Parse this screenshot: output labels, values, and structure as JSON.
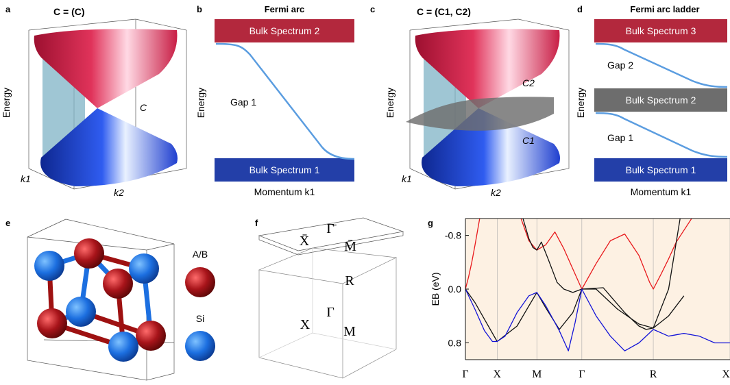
{
  "panels": {
    "a": {
      "letter": "a",
      "header": "C = (C)",
      "ylabel": "Energy",
      "chern_label": "C",
      "k1_label": "k1",
      "k2_label": "k2",
      "colors": {
        "upper_cone": "#c81e45",
        "lower_cone": "#1f3fcf",
        "plane": "#7fb3c6"
      }
    },
    "b": {
      "letter": "b",
      "title": "Fermi arc",
      "ylabel": "Energy",
      "xlabel": "Momentum k1",
      "bulk_top": "Bulk Spectrum 2",
      "bulk_bottom": "Bulk Spectrum 1",
      "gap": "Gap 1",
      "colors": {
        "top": "#b3283d",
        "bottom": "#233fa8",
        "arc": "#5b9de0"
      }
    },
    "c": {
      "letter": "c",
      "header": "C = (C1, C2)",
      "ylabel": "Energy",
      "c2_label": "C2",
      "c1_label": "C1",
      "k1_label": "k1",
      "k2_label": "k2",
      "colors": {
        "middle_sheet": "#6e6e6e"
      }
    },
    "d": {
      "letter": "d",
      "title": "Fermi arc ladder",
      "ylabel": "Energy",
      "xlabel": "Momentum k1",
      "bulk_top": "Bulk Spectrum 3",
      "bulk_mid": "Bulk Spectrum 2",
      "bulk_bottom": "Bulk Spectrum 1",
      "gap_upper": "Gap 2",
      "gap_lower": "Gap 1",
      "colors": {
        "top": "#b3283d",
        "mid": "#6d6d6d",
        "bottom": "#233fa8"
      }
    },
    "e": {
      "letter": "e",
      "legend_ab": "A/B",
      "legend_si": "Si",
      "colors": {
        "ab": "#9e1111",
        "si": "#1c6fe0"
      }
    },
    "f": {
      "letter": "f",
      "surface_points": [
        "X̄",
        "Γ̄",
        "M̄"
      ],
      "bulk_points": [
        "R",
        "Γ",
        "X",
        "M"
      ]
    },
    "g": {
      "letter": "g",
      "ylabel": "EB (eV)",
      "yticks": [
        "-0.8",
        "0.0",
        "0.8"
      ],
      "xticks": [
        "Γ",
        "X",
        "M",
        "Γ",
        "R",
        "X"
      ],
      "colors": {
        "bg": "#fdf1e3",
        "red": "#e8191c",
        "black": "#111111",
        "blue": "#1414d8"
      }
    }
  },
  "chart_data": {
    "type": "line",
    "xlabel": "",
    "ylabel": "EB (eV)",
    "x_ticks": [
      "Γ",
      "X",
      "M",
      "Γ",
      "R",
      "X"
    ],
    "x_tick_positions": [
      0,
      1,
      2,
      3,
      4,
      5
    ],
    "ylim": [
      -1.05,
      1.05
    ],
    "y_inverted": true,
    "grid": true,
    "series": [
      {
        "color": "red",
        "x": [
          0,
          0.1,
          0.2,
          0.3,
          0.45,
          1.0,
          1.6,
          1.8,
          2.0,
          2.2,
          2.4,
          2.6,
          2.8,
          3.0,
          3.2,
          3.4,
          3.6,
          3.8,
          3.95,
          4.0,
          4.1,
          4.2,
          4.3,
          4.5
        ],
        "y": [
          0.0,
          -0.18,
          -0.4,
          -0.65,
          -1.05,
          -1.5,
          -1.05,
          -0.72,
          -0.58,
          -0.66,
          -0.85,
          -0.6,
          -0.3,
          0.0,
          -0.38,
          -0.72,
          -0.82,
          -0.5,
          -0.1,
          0.0,
          -0.22,
          -0.45,
          -0.7,
          -1.05
        ]
      },
      {
        "color": "black",
        "x": [
          0,
          0.3,
          0.6,
          1.0,
          1.5,
          1.8,
          2.0,
          2.2,
          2.5,
          2.8,
          3.0,
          3.2,
          3.5,
          3.8,
          4.0,
          4.2,
          4.35
        ],
        "y": [
          0.0,
          0.2,
          0.45,
          0.78,
          0.55,
          0.25,
          0.05,
          0.28,
          0.6,
          0.35,
          0.0,
          0.0,
          0.3,
          0.52,
          0.58,
          0.0,
          -1.05
        ]
      },
      {
        "color": "black",
        "x": [
          1.65,
          1.8,
          1.9,
          2.0,
          2.1,
          2.25,
          2.45,
          2.6,
          2.8,
          3.0
        ],
        "y": [
          -1.05,
          -0.75,
          -0.62,
          -0.58,
          -0.7,
          -0.45,
          -0.1,
          0.0,
          0.05,
          0.0
        ]
      },
      {
        "color": "black",
        "x": [
          3.0,
          3.3,
          3.6,
          3.8,
          3.9,
          4.0,
          4.2,
          4.4
        ],
        "y": [
          0.0,
          -0.02,
          0.35,
          0.55,
          0.6,
          0.58,
          0.4,
          0.1
        ]
      },
      {
        "color": "blue",
        "x": [
          0,
          0.3,
          0.6,
          0.85,
          1.0,
          1.2,
          1.5,
          1.8,
          2.0,
          2.2,
          2.5,
          2.7,
          2.85,
          3.0,
          3.2,
          3.4,
          3.6,
          3.8,
          4.0,
          4.2,
          4.4,
          4.6,
          4.8,
          5.0
        ],
        "y": [
          0.0,
          0.3,
          0.62,
          0.78,
          0.78,
          0.7,
          0.35,
          0.1,
          0.05,
          0.25,
          0.62,
          0.92,
          0.5,
          0.0,
          0.4,
          0.7,
          0.92,
          0.8,
          0.6,
          0.7,
          0.66,
          0.7,
          0.8,
          0.8
        ]
      }
    ]
  }
}
